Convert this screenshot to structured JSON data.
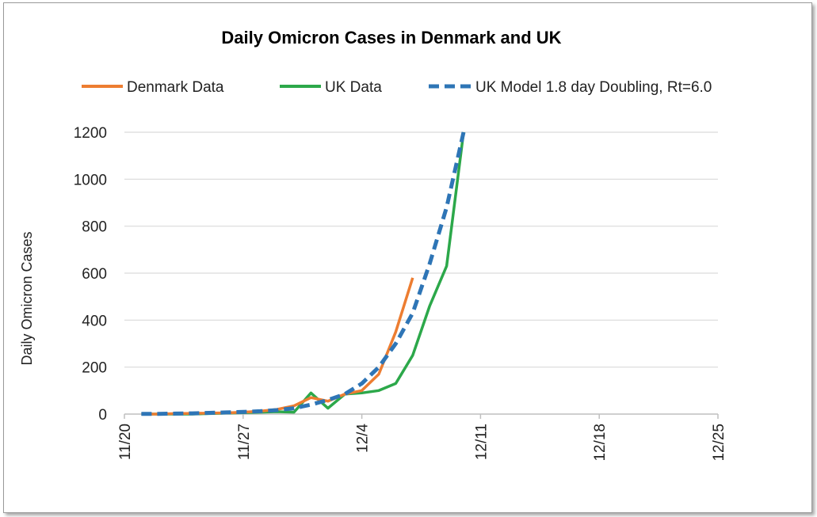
{
  "chart_data": {
    "type": "line",
    "title": "Daily Omicron Cases in Denmark and UK",
    "xlabel": "",
    "ylabel": "Daily Omicron Cases",
    "x_tick_labels": [
      "11/20",
      "11/27",
      "12/4",
      "12/11",
      "12/18",
      "12/25"
    ],
    "y_tick_labels": [
      "0",
      "200",
      "400",
      "600",
      "800",
      "1000",
      "1200"
    ],
    "xlim_days": [
      0,
      35
    ],
    "ylim": [
      0,
      1200
    ],
    "grid": "horizontal",
    "legend_position": "top",
    "series": [
      {
        "name": "Denmark Data",
        "color": "#ED7D31",
        "style": "solid",
        "x_days": [
          1,
          2,
          3,
          4,
          5,
          6,
          7,
          8,
          9,
          10,
          11,
          12,
          13,
          14,
          15,
          16,
          17
        ],
        "values": [
          0,
          0,
          2,
          3,
          4,
          5,
          8,
          12,
          20,
          35,
          70,
          55,
          85,
          100,
          170,
          350,
          580
        ]
      },
      {
        "name": "UK Data",
        "color": "#2CA84A",
        "style": "solid",
        "x_days": [
          1,
          2,
          3,
          4,
          5,
          6,
          7,
          8,
          9,
          10,
          11,
          12,
          13,
          14,
          15,
          16,
          17,
          18,
          19,
          20
        ],
        "values": [
          0,
          0,
          0,
          0,
          2,
          4,
          6,
          8,
          10,
          8,
          90,
          25,
          85,
          90,
          100,
          130,
          250,
          460,
          630,
          1200
        ]
      },
      {
        "name": "UK Model 1.8 day Doubling, Rt=6.0",
        "color": "#2E75B6",
        "style": "dashed",
        "x_days": [
          1,
          2,
          3,
          4,
          5,
          6,
          7,
          8,
          9,
          10,
          11,
          12,
          13,
          14,
          15,
          16,
          17,
          18,
          19,
          20
        ],
        "values": [
          1,
          1,
          2,
          3,
          5,
          7,
          9,
          12,
          17,
          25,
          40,
          60,
          85,
          130,
          200,
          300,
          430,
          640,
          880,
          1200
        ]
      }
    ]
  }
}
